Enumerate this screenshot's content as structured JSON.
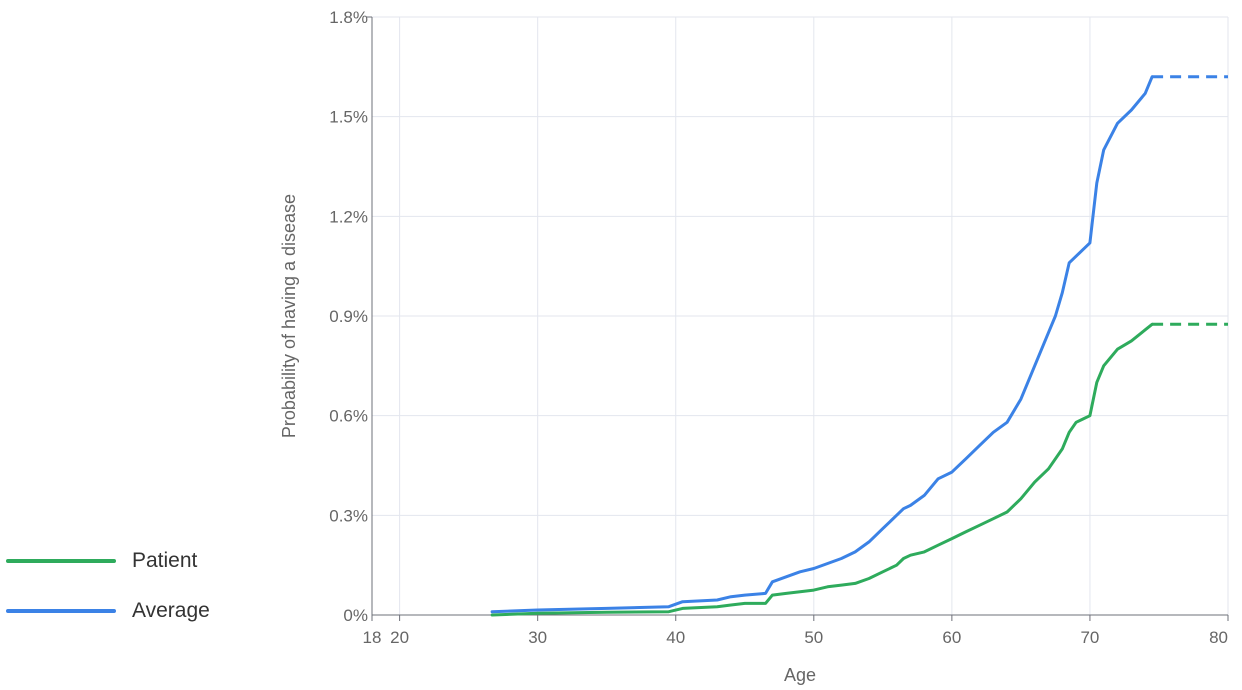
{
  "chart_data": {
    "type": "line",
    "xlabel": "Age",
    "ylabel": "Probability of having a disease",
    "xlim": [
      18,
      80
    ],
    "ylim": [
      0,
      1.8
    ],
    "x_ticks": [
      18,
      20,
      30,
      40,
      50,
      60,
      70,
      80
    ],
    "x_tick_labels": [
      "18",
      "20",
      "30",
      "40",
      "50",
      "60",
      "70",
      "80"
    ],
    "y_ticks": [
      0,
      0.3,
      0.6,
      0.9,
      1.2,
      1.5,
      1.8
    ],
    "y_tick_labels": [
      "0%",
      "0.3%",
      "0.6%",
      "0.9%",
      "1.2%",
      "1.5%",
      "1.8%"
    ],
    "grid": true,
    "legend_position": "bottom-left",
    "series": [
      {
        "name": "Patient",
        "color": "#2eab5c",
        "points": [
          [
            26.7,
            0.0
          ],
          [
            30,
            0.005
          ],
          [
            35,
            0.008
          ],
          [
            39.5,
            0.01
          ],
          [
            40.5,
            0.02
          ],
          [
            43,
            0.025
          ],
          [
            44,
            0.03
          ],
          [
            45,
            0.035
          ],
          [
            46.5,
            0.035
          ],
          [
            47,
            0.06
          ],
          [
            48,
            0.065
          ],
          [
            49,
            0.07
          ],
          [
            50,
            0.075
          ],
          [
            51,
            0.085
          ],
          [
            52,
            0.09
          ],
          [
            53,
            0.095
          ],
          [
            54,
            0.11
          ],
          [
            55,
            0.13
          ],
          [
            56,
            0.15
          ],
          [
            56.5,
            0.17
          ],
          [
            57,
            0.18
          ],
          [
            58,
            0.19
          ],
          [
            59,
            0.21
          ],
          [
            60,
            0.23
          ],
          [
            61,
            0.25
          ],
          [
            62,
            0.27
          ],
          [
            63,
            0.29
          ],
          [
            64,
            0.31
          ],
          [
            65,
            0.35
          ],
          [
            66,
            0.4
          ],
          [
            67,
            0.44
          ],
          [
            68,
            0.5
          ],
          [
            68.5,
            0.55
          ],
          [
            69,
            0.58
          ],
          [
            69.5,
            0.59
          ],
          [
            70,
            0.6
          ],
          [
            70.5,
            0.7
          ],
          [
            71,
            0.75
          ],
          [
            72,
            0.8
          ],
          [
            73,
            0.825
          ],
          [
            74.5,
            0.875
          ]
        ],
        "extension": [
          [
            74.5,
            0.875
          ],
          [
            80,
            0.875
          ]
        ]
      },
      {
        "name": "Average",
        "color": "#3b82e6",
        "points": [
          [
            26.7,
            0.01
          ],
          [
            30,
            0.015
          ],
          [
            35,
            0.02
          ],
          [
            39.5,
            0.025
          ],
          [
            40.5,
            0.04
          ],
          [
            43,
            0.045
          ],
          [
            44,
            0.055
          ],
          [
            45,
            0.06
          ],
          [
            46.5,
            0.065
          ],
          [
            47,
            0.1
          ],
          [
            48,
            0.115
          ],
          [
            49,
            0.13
          ],
          [
            50,
            0.14
          ],
          [
            51,
            0.155
          ],
          [
            52,
            0.17
          ],
          [
            53,
            0.19
          ],
          [
            54,
            0.22
          ],
          [
            55,
            0.26
          ],
          [
            56,
            0.3
          ],
          [
            56.5,
            0.32
          ],
          [
            57,
            0.33
          ],
          [
            58,
            0.36
          ],
          [
            59,
            0.41
          ],
          [
            60,
            0.43
          ],
          [
            61,
            0.47
          ],
          [
            62,
            0.51
          ],
          [
            63,
            0.55
          ],
          [
            64,
            0.58
          ],
          [
            65,
            0.65
          ],
          [
            66,
            0.75
          ],
          [
            67,
            0.85
          ],
          [
            67.5,
            0.9
          ],
          [
            68,
            0.97
          ],
          [
            68.5,
            1.06
          ],
          [
            69,
            1.08
          ],
          [
            69.5,
            1.1
          ],
          [
            70,
            1.12
          ],
          [
            70.5,
            1.3
          ],
          [
            71,
            1.4
          ],
          [
            72,
            1.48
          ],
          [
            73,
            1.52
          ],
          [
            74,
            1.57
          ],
          [
            74.5,
            1.62
          ]
        ],
        "extension": [
          [
            74.5,
            1.62
          ],
          [
            80,
            1.62
          ]
        ]
      }
    ]
  }
}
